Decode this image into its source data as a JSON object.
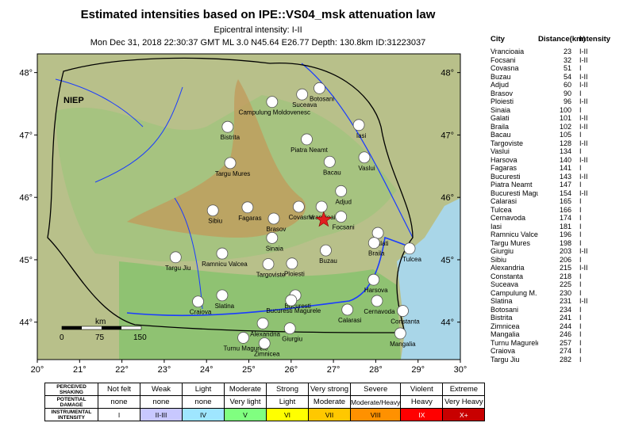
{
  "header": {
    "title": "Estimated intensities based on IPE::VS04_msk attenuation law",
    "epicentral": "Epicentral intensity: I-II",
    "event_info": "Mon Dec 31, 2018 22:30:37 GMT ML 3.0 N45.64 E26.77 Depth: 130.8km ID:31223037"
  },
  "map": {
    "region_label": "NIEP",
    "lon_range": [
      20,
      30
    ],
    "lat_range": [
      43.4,
      48.3
    ],
    "lon_ticks": [
      "20°",
      "21°",
      "22°",
      "23°",
      "24°",
      "25°",
      "26°",
      "27°",
      "28°",
      "29°",
      "30°"
    ],
    "lat_ticks_left": [
      "48°",
      "47°",
      "46°",
      "45°",
      "44°"
    ],
    "lat_ticks_right": [
      "48°",
      "47°",
      "46°",
      "45°",
      "44°"
    ],
    "scale_bar": {
      "unit": "km",
      "labels": [
        "0",
        "75",
        "150"
      ]
    },
    "epicenter": {
      "lon": 26.77,
      "lat": 45.64,
      "color": "#e02020"
    },
    "colors": {
      "sea": "#a9d6e8",
      "lowland": "#7fbf6b",
      "hills": "#c9b06b",
      "mountains": "#b98a4e",
      "river": "#1a3cff",
      "station": "#ffffff"
    },
    "cities": [
      {
        "name": "Campulung Moldovenesc",
        "lon": 25.55,
        "lat": 47.53
      },
      {
        "name": "Botosani",
        "lon": 26.67,
        "lat": 47.75
      },
      {
        "name": "Suceava",
        "lon": 26.26,
        "lat": 47.65
      },
      {
        "name": "Bistrita",
        "lon": 24.5,
        "lat": 47.13
      },
      {
        "name": "Iasi",
        "lon": 27.6,
        "lat": 47.16
      },
      {
        "name": "Piatra Neamt",
        "lon": 26.37,
        "lat": 46.93
      },
      {
        "name": "Targu Mures",
        "lon": 24.56,
        "lat": 46.55
      },
      {
        "name": "Bacau",
        "lon": 26.91,
        "lat": 46.57
      },
      {
        "name": "Vaslui",
        "lon": 27.73,
        "lat": 46.64
      },
      {
        "name": "Adjud",
        "lon": 27.18,
        "lat": 46.1
      },
      {
        "name": "Fagaras",
        "lon": 24.97,
        "lat": 45.84
      },
      {
        "name": "Sibiu",
        "lon": 24.15,
        "lat": 45.79
      },
      {
        "name": "Vrancioaia",
        "lon": 26.72,
        "lat": 45.85
      },
      {
        "name": "Covasna",
        "lon": 26.18,
        "lat": 45.85
      },
      {
        "name": "Brasov",
        "lon": 25.59,
        "lat": 45.66
      },
      {
        "name": "Focsani",
        "lon": 27.18,
        "lat": 45.69
      },
      {
        "name": "Galati",
        "lon": 28.05,
        "lat": 45.43
      },
      {
        "name": "Braila",
        "lon": 27.96,
        "lat": 45.27
      },
      {
        "name": "Sinaia",
        "lon": 25.55,
        "lat": 45.35
      },
      {
        "name": "Tulcea",
        "lon": 28.8,
        "lat": 45.18
      },
      {
        "name": "Targu Jiu",
        "lon": 23.27,
        "lat": 45.04
      },
      {
        "name": "Ramnicu Valcea",
        "lon": 24.37,
        "lat": 45.1
      },
      {
        "name": "Buzau",
        "lon": 26.82,
        "lat": 45.15
      },
      {
        "name": "Targoviste",
        "lon": 25.46,
        "lat": 44.93
      },
      {
        "name": "Ploiesti",
        "lon": 26.02,
        "lat": 44.94
      },
      {
        "name": "Bucuresti",
        "lon": 26.1,
        "lat": 44.43
      },
      {
        "name": "Harsova",
        "lon": 27.95,
        "lat": 44.68
      },
      {
        "name": "Slatina",
        "lon": 24.37,
        "lat": 44.43
      },
      {
        "name": "Craiova",
        "lon": 23.8,
        "lat": 44.33
      },
      {
        "name": "Bucuresti Magurele",
        "lon": 26.0,
        "lat": 44.35
      },
      {
        "name": "Alexandria",
        "lon": 25.33,
        "lat": 43.98
      },
      {
        "name": "Cernavoda",
        "lon": 28.03,
        "lat": 44.34
      },
      {
        "name": "Calarasi",
        "lon": 27.33,
        "lat": 44.2
      },
      {
        "name": "Constanta",
        "lon": 28.64,
        "lat": 44.18
      },
      {
        "name": "Giurgiu",
        "lon": 25.97,
        "lat": 43.9
      },
      {
        "name": "Turnu Magurele",
        "lon": 24.87,
        "lat": 43.75
      },
      {
        "name": "Zimnicea",
        "lon": 25.37,
        "lat": 43.66
      },
      {
        "name": "Mangalia",
        "lon": 28.58,
        "lat": 43.82
      }
    ]
  },
  "table": {
    "headers": [
      "City",
      "Distance(km)",
      "Intensity"
    ],
    "rows": [
      [
        "Vrancioaia",
        "23",
        "I-II"
      ],
      [
        "Focsani",
        "32",
        "I-II"
      ],
      [
        "Covasna",
        "51",
        "I"
      ],
      [
        "Buzau",
        "54",
        "I-II"
      ],
      [
        "Adjud",
        "60",
        "I-II"
      ],
      [
        "Brasov",
        "90",
        "I"
      ],
      [
        "Ploiesti",
        "96",
        "I-II"
      ],
      [
        "Sinaia",
        "100",
        "I"
      ],
      [
        "Galati",
        "101",
        "I-II"
      ],
      [
        "Braila",
        "102",
        "I-II"
      ],
      [
        "Bacau",
        "105",
        "I"
      ],
      [
        "Targoviste",
        "128",
        "I-II"
      ],
      [
        "Vaslui",
        "134",
        "I"
      ],
      [
        "Harsova",
        "140",
        "I-II"
      ],
      [
        "Fagaras",
        "141",
        "I"
      ],
      [
        "Bucuresti",
        "143",
        "I-II"
      ],
      [
        "Piatra Neamt",
        "147",
        "I"
      ],
      [
        "Bucuresti Magurele",
        "154",
        "I-II"
      ],
      [
        "Calarasi",
        "165",
        "I"
      ],
      [
        "Tulcea",
        "166",
        "I"
      ],
      [
        "Cernavoda",
        "174",
        "I"
      ],
      [
        "Iasi",
        "181",
        "I"
      ],
      [
        "Ramnicu Valcea",
        "196",
        "I"
      ],
      [
        "Targu Mures",
        "198",
        "I"
      ],
      [
        "Giurgiu",
        "203",
        "I-II"
      ],
      [
        "Sibiu",
        "206",
        "I"
      ],
      [
        "Alexandria",
        "215",
        "I-II"
      ],
      [
        "Constanta",
        "218",
        "I"
      ],
      [
        "Suceava",
        "225",
        "I"
      ],
      [
        "Campulung M.",
        "230",
        "I"
      ],
      [
        "Slatina",
        "231",
        "I-II"
      ],
      [
        "Botosani",
        "234",
        "I"
      ],
      [
        "Bistrita",
        "241",
        "I"
      ],
      [
        "Zimnicea",
        "244",
        "I"
      ],
      [
        "Mangalia",
        "246",
        "I"
      ],
      [
        "Turnu Magurele",
        "257",
        "I"
      ],
      [
        "Craiova",
        "274",
        "I"
      ],
      [
        "Targu Jiu",
        "282",
        "I"
      ]
    ]
  },
  "legend": {
    "row_labels": [
      "PERCEIVED SHAKING",
      "POTENTIAL DAMAGE",
      "INSTRUMENTAL INTENSITY"
    ],
    "shaking": [
      "Not felt",
      "Weak",
      "Light",
      "Moderate",
      "Strong",
      "Very strong",
      "Severe",
      "Violent",
      "Extreme"
    ],
    "damage": [
      "none",
      "none",
      "none",
      "Very light",
      "Light",
      "Moderate",
      "Moderate/Heavy",
      "Heavy",
      "Very Heavy"
    ],
    "intensity": [
      "I",
      "II-III",
      "IV",
      "V",
      "VI",
      "VII",
      "VIII",
      "IX",
      "X+"
    ],
    "intensity_colors": [
      "#ffffff",
      "#c8c8ff",
      "#9fe6ff",
      "#80ff80",
      "#ffff00",
      "#ffc800",
      "#ff9100",
      "#ff0000",
      "#c80000"
    ],
    "intensity_text_colors": [
      "#000000",
      "#000000",
      "#000000",
      "#000000",
      "#000000",
      "#000000",
      "#000000",
      "#ffffff",
      "#ffffff"
    ]
  }
}
